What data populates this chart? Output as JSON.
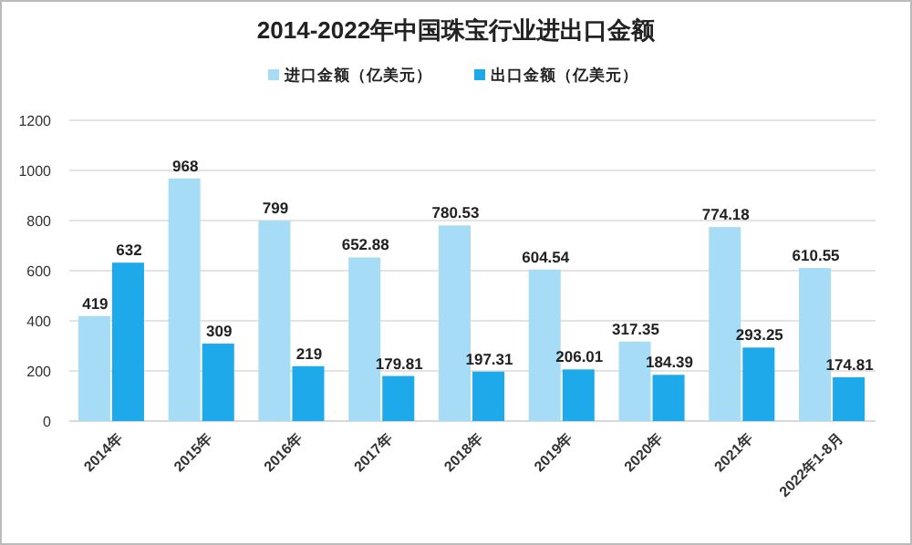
{
  "chart_data": {
    "type": "bar",
    "title": "2014-2022年中国珠宝行业进出口金额",
    "categories": [
      "2014年",
      "2015年",
      "2016年",
      "2017年",
      "2018年",
      "2019年",
      "2020年",
      "2021年",
      "2022年1-8月"
    ],
    "series": [
      {
        "name": "进口金额（亿美元）",
        "color": "#a6dcf5",
        "values": [
          419,
          968,
          799,
          652.88,
          780.53,
          604.54,
          317.35,
          774.18,
          610.55
        ]
      },
      {
        "name": "出口金额（亿美元）",
        "color": "#1eaaea",
        "values": [
          632,
          309,
          219,
          179.81,
          197.31,
          206.01,
          184.39,
          293.25,
          174.81
        ]
      }
    ],
    "ylim": [
      0,
      1200
    ],
    "yticks": [
      0,
      200,
      400,
      600,
      800,
      1000,
      1200
    ],
    "grid": "y",
    "legend": "top",
    "data_labels": true
  }
}
